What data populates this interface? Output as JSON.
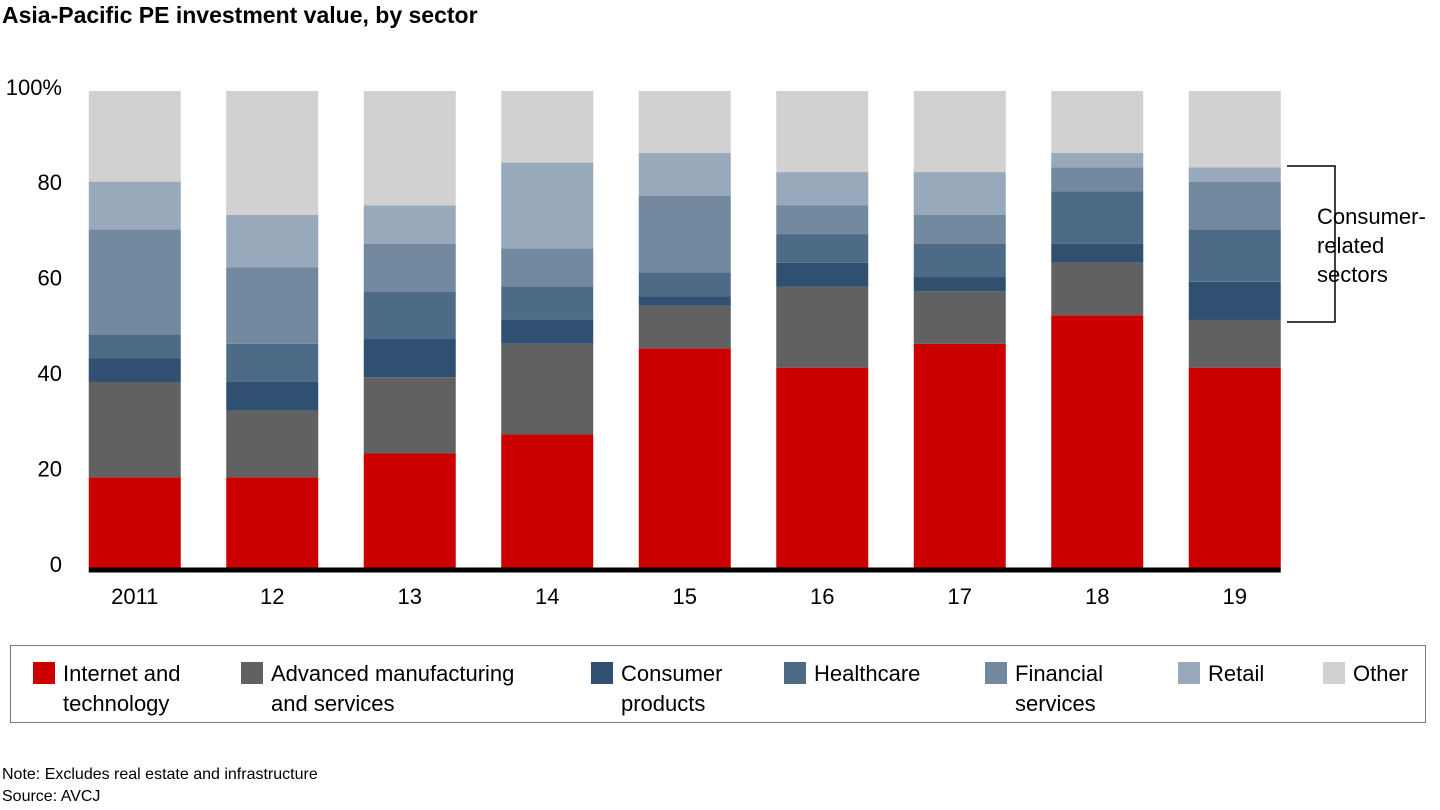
{
  "chart_data": {
    "type": "stacked-bar",
    "title": "Asia-Pacific PE investment value, by sector",
    "categories": [
      "2011",
      "12",
      "13",
      "14",
      "15",
      "16",
      "17",
      "18",
      "19"
    ],
    "series": [
      {
        "name": "Internet and\ntechnology",
        "color": "#cc0000",
        "values": [
          19,
          19,
          24,
          28,
          46,
          42,
          47,
          53,
          42
        ]
      },
      {
        "name": "Advanced manufacturing\nand services",
        "color": "#616161",
        "values": [
          20,
          14,
          16,
          19,
          9,
          17,
          11,
          11,
          10
        ]
      },
      {
        "name": "Consumer\nproducts",
        "color": "#2f5070",
        "values": [
          5,
          6,
          8,
          5,
          2,
          5,
          3,
          4,
          8
        ]
      },
      {
        "name": "Healthcare",
        "color": "#4d6a87",
        "values": [
          5,
          8,
          10,
          7,
          5,
          6,
          7,
          11,
          11
        ]
      },
      {
        "name": "Financial\nservices",
        "color": "#72899f",
        "values": [
          22,
          16,
          10,
          8,
          16,
          6,
          6,
          5,
          10
        ]
      },
      {
        "name": "Retail",
        "color": "#97a9ba",
        "values": [
          10,
          11,
          8,
          18,
          9,
          7,
          9,
          3,
          3
        ]
      },
      {
        "name": "Other",
        "color": "#d1d1d1",
        "values": [
          19,
          26,
          24,
          15,
          13,
          17,
          17,
          13,
          16
        ]
      }
    ],
    "ylim": [
      0,
      100
    ],
    "yticks": [
      0,
      20,
      40,
      60,
      80,
      {
        "value": 100,
        "label": "100%"
      }
    ],
    "annotation": "Consumer-\nrelated\nsectors",
    "note": "Note: Excludes real estate and infrastructure",
    "source": "Source: AVCJ"
  }
}
